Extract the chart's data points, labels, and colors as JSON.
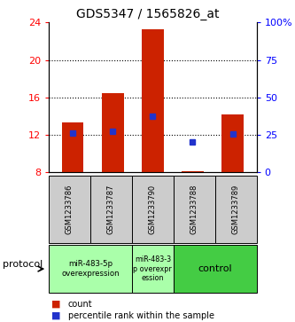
{
  "title": "GDS5347 / 1565826_at",
  "samples": [
    "GSM1233786",
    "GSM1233787",
    "GSM1233790",
    "GSM1233788",
    "GSM1233789"
  ],
  "bar_bottoms": [
    8,
    8,
    8,
    8,
    8
  ],
  "bar_tops": [
    13.3,
    16.5,
    23.3,
    8.1,
    14.2
  ],
  "percentile_values": [
    12.2,
    12.4,
    14.0,
    11.2,
    12.1
  ],
  "bar_color": "#cc2200",
  "blue_color": "#2233cc",
  "left_ylim": [
    8,
    24
  ],
  "right_ylim": [
    0,
    100
  ],
  "left_yticks": [
    8,
    12,
    16,
    20,
    24
  ],
  "right_yticks": [
    0,
    25,
    50,
    75,
    100
  ],
  "right_yticklabels": [
    "0",
    "25",
    "50",
    "75",
    "100%"
  ],
  "dotted_lines": [
    12,
    16,
    20
  ],
  "protocol_label": "protocol",
  "legend_count_label": "count",
  "legend_percentile_label": "percentile rank within the sample",
  "sample_box_color": "#cccccc",
  "group1_color": "#aaffaa",
  "group2_color": "#aaffaa",
  "group3_color": "#44cc44",
  "fig_width": 3.33,
  "fig_height": 3.63,
  "dpi": 100
}
